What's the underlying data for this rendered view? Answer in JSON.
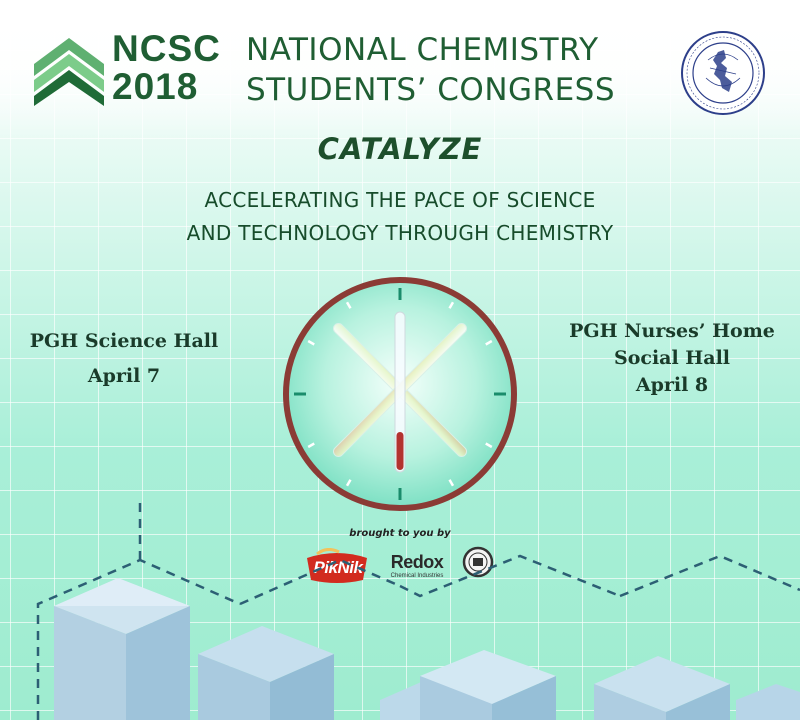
{
  "header": {
    "brand_short_line1": "NCSC",
    "brand_short_line2": "2018",
    "brand_long_line1": "NATIONAL CHEMISTRY",
    "brand_long_line2": "STUDENTS’ CONGRESS"
  },
  "theme": {
    "title": "CATALYZE",
    "tagline_line1": "ACCELERATING THE PACE OF SCIENCE",
    "tagline_line2": "AND TECHNOLOGY THROUGH CHEMISTRY"
  },
  "venues": {
    "left": {
      "place": "PGH Science Hall",
      "date": "April 7"
    },
    "right": {
      "place_line1": "PGH Nurses’ Home",
      "place_line2": "Social Hall",
      "date": "April 8"
    }
  },
  "sponsors": {
    "label": "brought to you by",
    "items": [
      "PikNik",
      "Redox",
      "Chemical Industries"
    ]
  },
  "icons": {
    "logo": "chevron-stack-icon",
    "seal": "association-seal-icon",
    "clock": "clock-icon",
    "sponsor_badge": "sponsor-badge-icon"
  },
  "colors": {
    "brand_green": "#1f5e33",
    "clock_ring": "#8b3b35",
    "clock_tick": "#1a8c6b",
    "background_mint": "#a9efd8",
    "box_blue": "#a6c9e0"
  }
}
